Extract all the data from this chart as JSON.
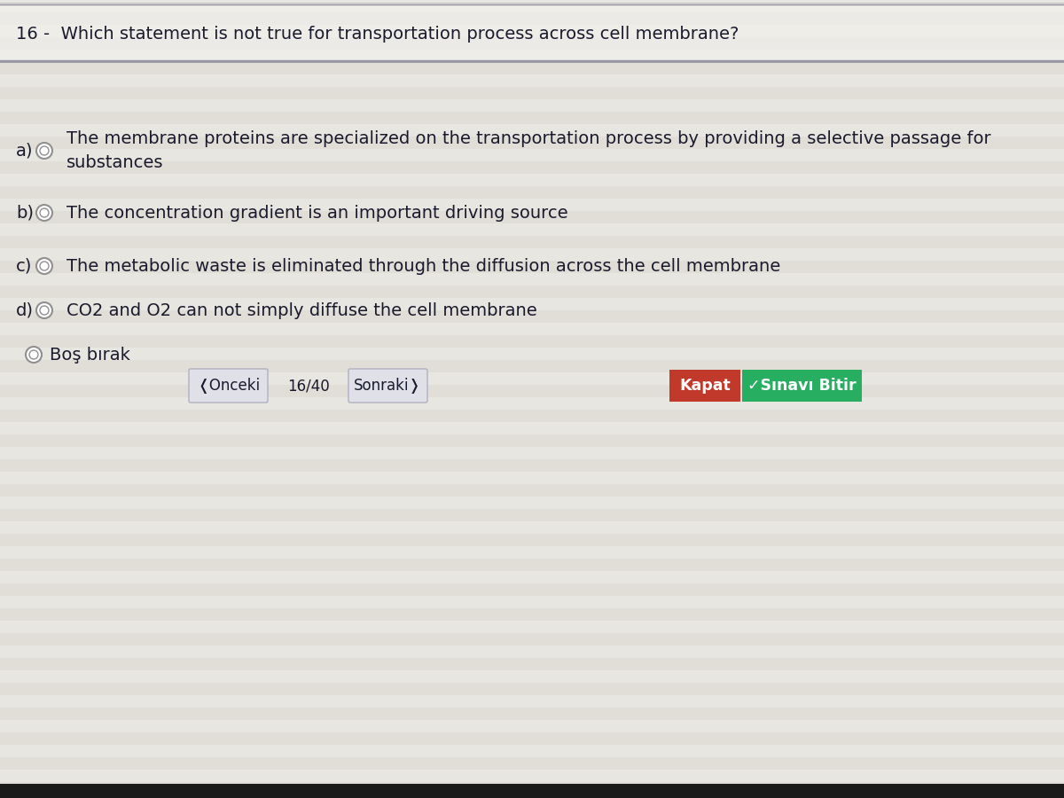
{
  "bg_color": "#e8e6e0",
  "bg_top_color": "#f0eeea",
  "question_number": "16 -  ",
  "question_text": "Which statement is not true for transportation process across cell membrane?",
  "question_fontsize": 14,
  "options": [
    {
      "label": "a)",
      "text": "The membrane proteins are specialized on the transportation process by providing a selective passage for\nsubstances",
      "circle_fill": "#ffffff",
      "circle_edge": "#999999"
    },
    {
      "label": "b)",
      "text": "The concentration gradient is an important driving source",
      "circle_fill": "#ffffff",
      "circle_edge": "#999999"
    },
    {
      "label": "c)",
      "text": "The metabolic waste is eliminated through the diffusion across the cell membrane",
      "circle_fill": "#ffffff",
      "circle_edge": "#999999"
    },
    {
      "label": "d)",
      "text": "CO2 and O2 can not simply diffuse the cell membrane",
      "circle_fill": "#ffffff",
      "circle_edge": "#999999"
    }
  ],
  "bos_birak": "Boş bırak",
  "nav_prev": "❬Onceki",
  "nav_page": "16/40",
  "nav_next": "Sonraki❭",
  "btn_kapat_text": "Kapat",
  "btn_kapat_color": "#c0392b",
  "btn_sinavi_text": "✓Sınavı Bitir",
  "btn_sinavi_color": "#27ae60",
  "btn_text_color": "#ffffff",
  "option_fontsize": 14,
  "text_color": "#1a1a2e",
  "nav_btn_bg": "#dfe0e8",
  "nav_btn_edge": "#b0b0c0",
  "divider_color": "#c0bdb8",
  "divider_color2": "#9090a0",
  "stripe_color_a": "#e9e7e1",
  "stripe_color_b": "#dddad4",
  "bottom_bar_color": "#1a1a1a"
}
